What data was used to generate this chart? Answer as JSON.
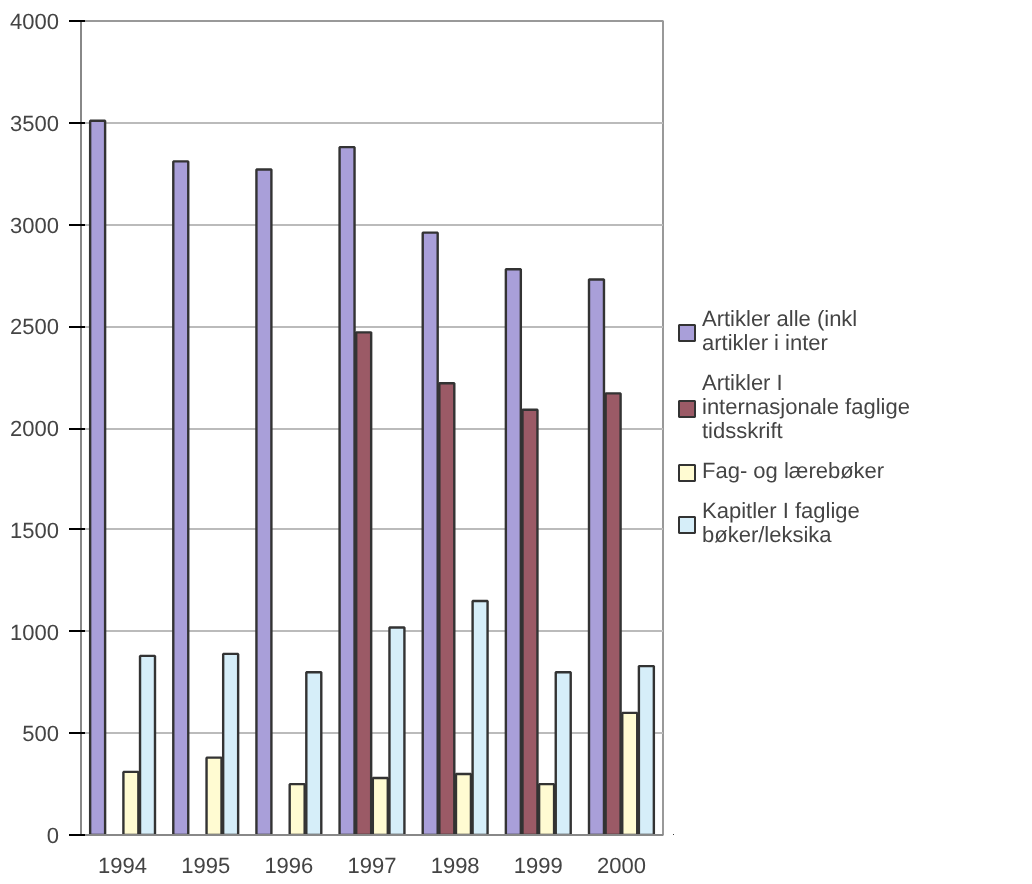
{
  "chart_data": {
    "type": "bar",
    "categories": [
      "1994",
      "1995",
      "1996",
      "1997",
      "1998",
      "1999",
      "2000"
    ],
    "series": [
      {
        "name": "Artikler alle (inkl artikler i inter",
        "color": "#a99fd9",
        "values": [
          3510,
          3310,
          3270,
          3380,
          2960,
          2780,
          2730
        ]
      },
      {
        "name": "Artikler I internasjonale faglige tidsskrift",
        "color": "#9b5a66",
        "values": [
          null,
          null,
          null,
          2470,
          2220,
          2090,
          2170
        ]
      },
      {
        "name": "Fag- og lærebøker",
        "color": "#fffbd2",
        "values": [
          310,
          380,
          250,
          280,
          300,
          250,
          600
        ]
      },
      {
        "name": "Kapitler I faglige bøker/leksika",
        "color": "#d6eef9",
        "values": [
          880,
          890,
          800,
          1020,
          1150,
          800,
          830
        ]
      }
    ],
    "ylim": [
      0,
      4000
    ],
    "yticks": [
      0,
      500,
      1000,
      1500,
      2000,
      2500,
      3000,
      3500,
      4000
    ],
    "grid": "y",
    "legend": "right"
  }
}
